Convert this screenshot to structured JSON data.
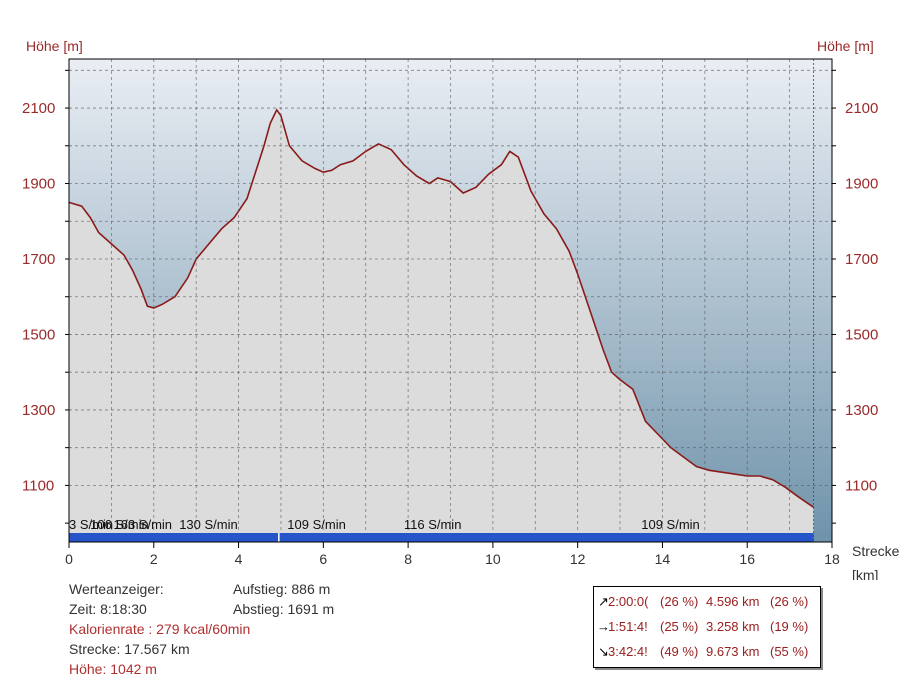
{
  "chart_data": {
    "type": "area",
    "ylabel_left": "Höhe [m]",
    "ylabel_right": "Höhe [m]",
    "xlabel": "Strecke",
    "xunit": "[km]",
    "xlim": [
      0,
      18
    ],
    "ylim": [
      950,
      2230
    ],
    "x_ticks": [
      0,
      2,
      4,
      6,
      8,
      10,
      12,
      14,
      16,
      18
    ],
    "y_ticks": [
      1100,
      1300,
      1500,
      1700,
      1900,
      2100
    ],
    "grid": true,
    "profile_x": [
      0,
      0.3,
      0.5,
      0.7,
      1.0,
      1.3,
      1.5,
      1.7,
      1.85,
      2.0,
      2.2,
      2.5,
      2.8,
      3.0,
      3.3,
      3.6,
      3.9,
      4.2,
      4.4,
      4.6,
      4.75,
      4.9,
      5.0,
      5.2,
      5.5,
      5.8,
      6.0,
      6.2,
      6.4,
      6.7,
      7.0,
      7.3,
      7.6,
      7.9,
      8.2,
      8.5,
      8.7,
      9.0,
      9.3,
      9.6,
      9.9,
      10.2,
      10.4,
      10.6,
      10.9,
      11.2,
      11.5,
      11.8,
      12.0,
      12.3,
      12.6,
      12.8,
      13.0,
      13.3,
      13.6,
      13.9,
      14.2,
      14.5,
      14.8,
      15.1,
      15.4,
      15.7,
      16.0,
      16.3,
      16.6,
      16.9,
      17.2,
      17.567
    ],
    "profile_y": [
      1850,
      1840,
      1810,
      1770,
      1740,
      1710,
      1670,
      1620,
      1575,
      1570,
      1580,
      1600,
      1650,
      1700,
      1740,
      1780,
      1810,
      1860,
      1930,
      2000,
      2060,
      2095,
      2080,
      2000,
      1960,
      1940,
      1930,
      1935,
      1950,
      1960,
      1985,
      2005,
      1990,
      1950,
      1920,
      1900,
      1915,
      1905,
      1875,
      1890,
      1925,
      1950,
      1985,
      1970,
      1880,
      1820,
      1780,
      1720,
      1660,
      1560,
      1460,
      1400,
      1380,
      1355,
      1270,
      1235,
      1200,
      1175,
      1150,
      1140,
      1135,
      1130,
      1125,
      1125,
      1115,
      1095,
      1070,
      1042
    ],
    "cadence_labels": [
      {
        "x": 0.0,
        "text": "3 S/min"
      },
      {
        "x": 0.5,
        "text": "106 S/min"
      },
      {
        "x": 1.05,
        "text": "163 S/min"
      },
      {
        "x": 2.6,
        "text": "130 S/min"
      },
      {
        "x": 5.15,
        "text": "109 S/min"
      },
      {
        "x": 7.9,
        "text": "116 S/min"
      },
      {
        "x": 13.5,
        "text": "109 S/min"
      }
    ],
    "cadence_bar_end_km": 17.567,
    "cadence_bar_marker_km": 4.95,
    "colors": {
      "profile_line": "#8b1a1a",
      "profile_fill": "#dcdcdc",
      "bar": "#2555c8",
      "sky_top": "#eaeef4",
      "sky_bottom": "#6f93aa"
    }
  },
  "stats": {
    "werteanzeiger": "Werteanzeiger:",
    "zeit": "Zeit: 8:18:30",
    "aufstieg": "Aufstieg: 886 m",
    "abstieg": "Abstieg: 1691 m",
    "kalorien": "Kalorienrate : 279 kcal/60min",
    "strecke": "Strecke: 17.567 km",
    "hoehe": "Höhe: 1042 m"
  },
  "summary": [
    {
      "arrow": "↗",
      "time": "2:00:0(",
      "time_pct": "(26 %)",
      "dist": "4.596 km",
      "dist_pct": "(26 %)"
    },
    {
      "arrow": "→",
      "time": "1:51:4!",
      "time_pct": "(25 %)",
      "dist": "3.258 km",
      "dist_pct": "(19 %)"
    },
    {
      "arrow": "↘",
      "time": "3:42:4!",
      "time_pct": "(49 %)",
      "dist": "9.673 km",
      "dist_pct": "(55 %)"
    }
  ]
}
